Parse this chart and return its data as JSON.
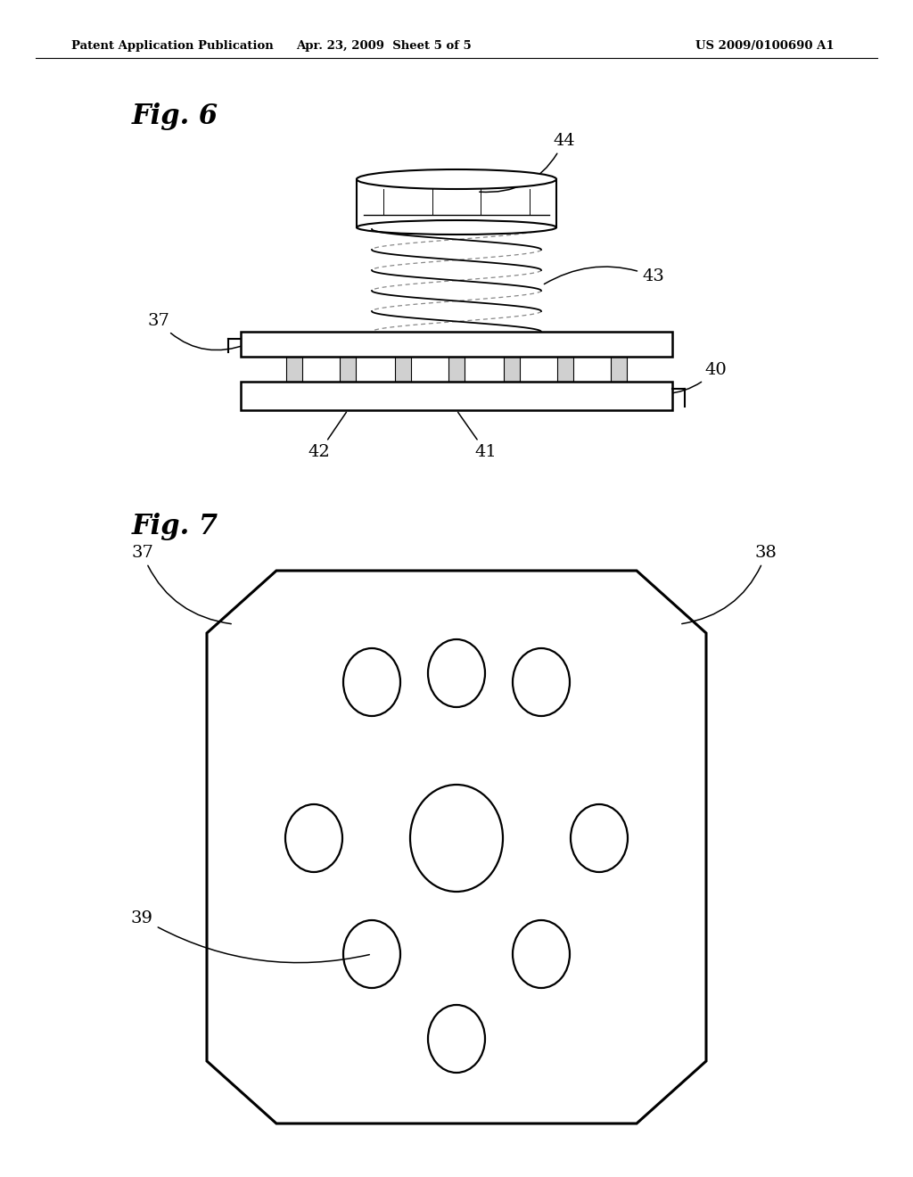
{
  "background_color": "#ffffff",
  "header_left": "Patent Application Publication",
  "header_center": "Apr. 23, 2009  Sheet 5 of 5",
  "header_right": "US 2009/0100690 A1"
}
